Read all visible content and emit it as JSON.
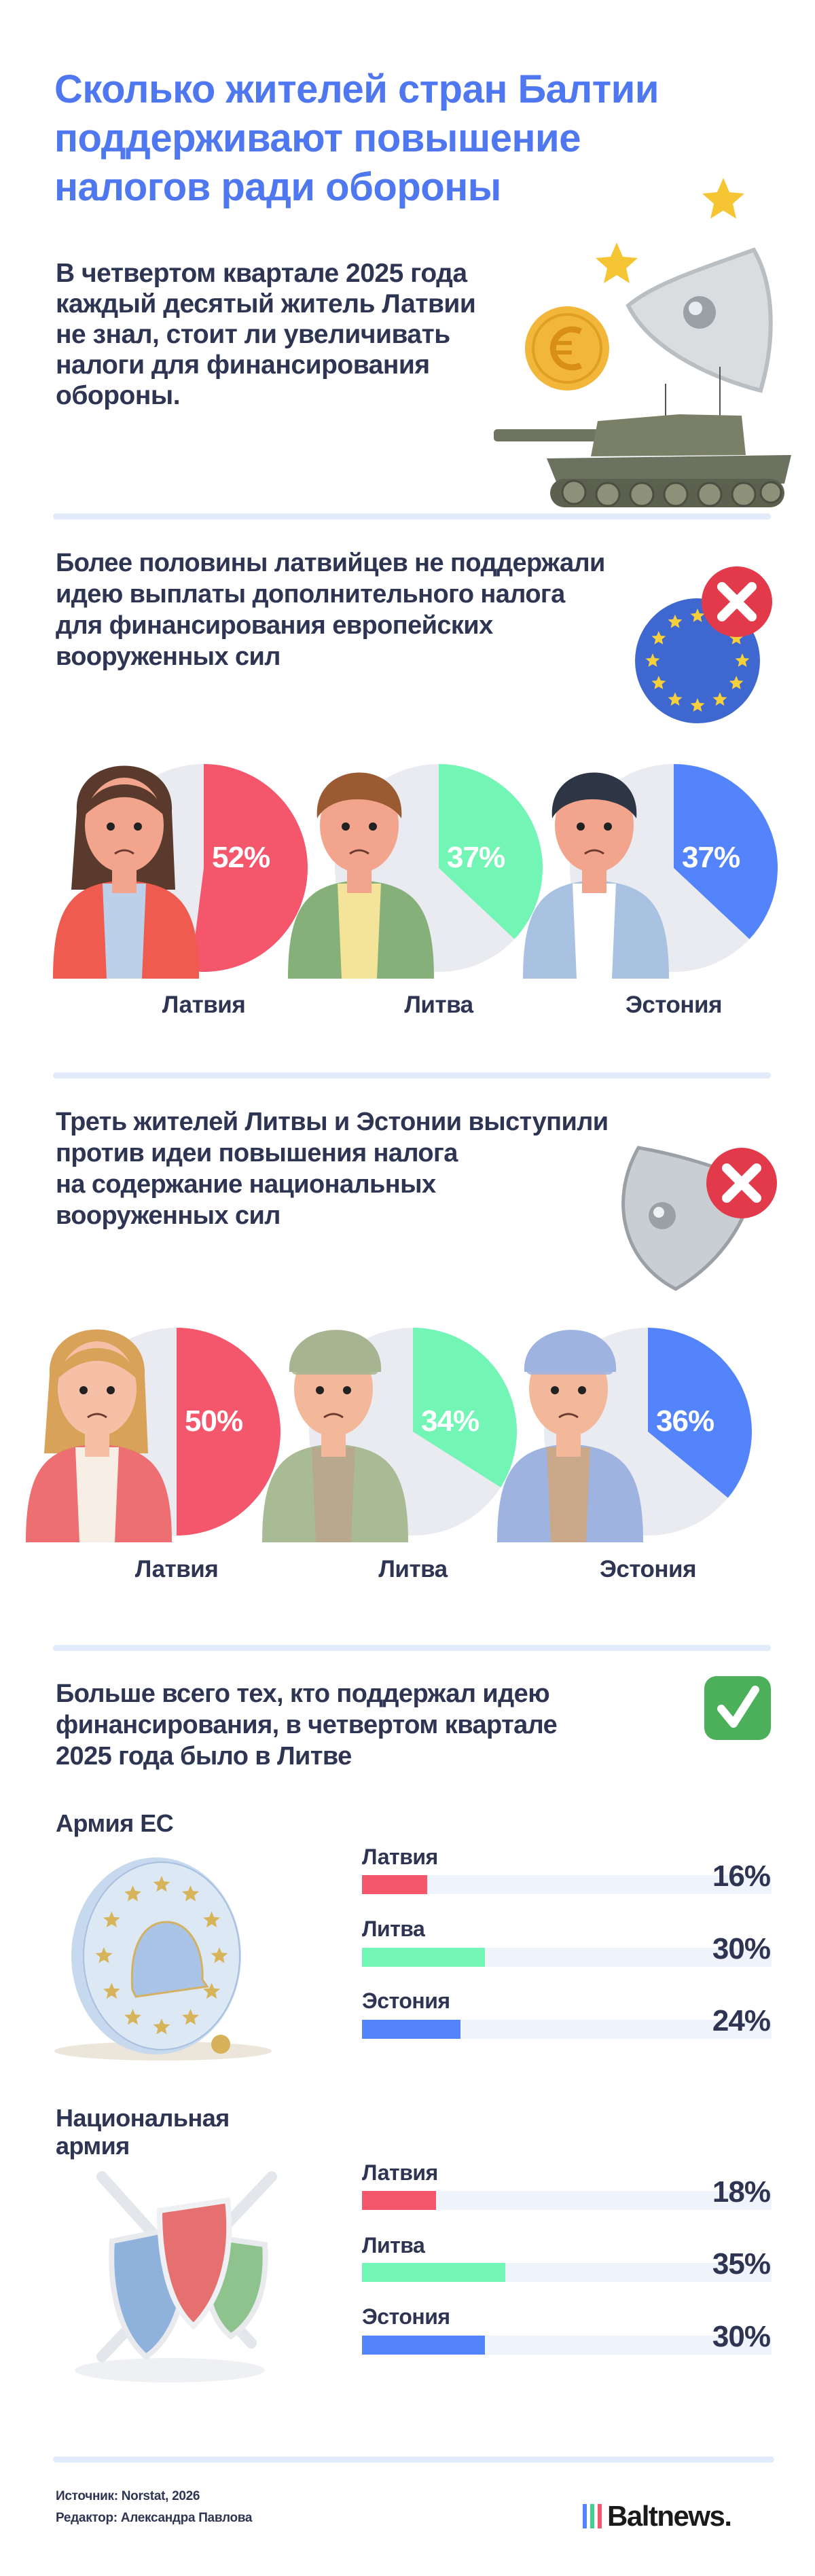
{
  "header": {
    "title": "Сколько жителей стран Балтии\nподдерживают повышение\nналогов ради обороны",
    "intro": "В четвертом квартале 2025 года\nкаждый десятый житель Латвии\nне знал, стоит ли увеличивать\nналоги для финансирования\nобороны."
  },
  "section_eu_tax": {
    "heading": "Более половины латвийцев не поддержали\nидею выплаты дополнительного налога\nдля финансирования европейских\nвооруженных сил",
    "icon": "eu-flag-with-cross-icon"
  },
  "section_national_tax": {
    "heading": "Треть жителей Литвы и Эстонии выступили\nпротив идеи повышения налога\nна содержание национальных\nвооруженных сил",
    "icon": "shield-with-cross-icon"
  },
  "section_support": {
    "heading": "Больше всего тех, кто поддержал идею\nфинансирования, в четвертом квартале\n2025 года было в Литве",
    "icon": "check-mark-icon"
  },
  "colors": {
    "latvia": "#f4566c",
    "lithuania": "#72f5b5",
    "estonia": "#5484fc",
    "remainder": "#e9ebf1",
    "track": "#eff4fc",
    "title": "#4f78f0",
    "text": "#2e3553"
  },
  "chart_data": [
    {
      "type": "pie",
      "title": "Более половины латвийцев не поддержали идею выплаты дополнительного налога для финансирования европейских вооруженных сил",
      "categories": [
        "Латвия",
        "Литва",
        "Эстония"
      ],
      "values": [
        52,
        37,
        37
      ],
      "unit": "%"
    },
    {
      "type": "pie",
      "title": "Треть жителей Литвы и Эстонии выступили против идеи повышения налога на содержание национальных вооруженных сил",
      "categories": [
        "Латвия",
        "Литва",
        "Эстония"
      ],
      "values": [
        50,
        34,
        36
      ],
      "unit": "%"
    },
    {
      "type": "bar",
      "title": "Армия ЕС",
      "categories": [
        "Латвия",
        "Литва",
        "Эстония"
      ],
      "values": [
        16,
        30,
        24
      ],
      "unit": "%",
      "xlim": [
        0,
        100
      ],
      "orientation": "horizontal"
    },
    {
      "type": "bar",
      "title": "Национальная\nармия",
      "categories": [
        "Латвия",
        "Литва",
        "Эстония"
      ],
      "values": [
        18,
        35,
        30
      ],
      "unit": "%",
      "xlim": [
        0,
        100
      ],
      "orientation": "horizontal"
    }
  ],
  "footer": {
    "source": "Источник: Norstat, 2026",
    "editor": "Редактор: Александра Павлова",
    "logo_text": "Baltnews.",
    "logo_bar_colors": [
      "#5484fc",
      "#3fcf8e",
      "#f4566c"
    ]
  }
}
